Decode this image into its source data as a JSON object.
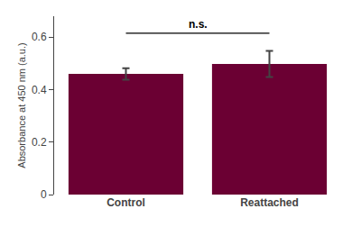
{
  "chart_data": {
    "type": "bar",
    "categories": [
      "Control",
      "Reattached"
    ],
    "values": [
      0.46,
      0.498
    ],
    "errors": [
      0.022,
      0.05
    ],
    "color": "#6B0033",
    "ylabel": "Absorbance at 450 nm (a.u.)",
    "ylim": [
      0.0,
      0.68
    ],
    "yticks": [
      0.0,
      0.2,
      0.4,
      0.6
    ],
    "grid": false,
    "annotations": [
      {
        "text": "n.s.",
        "x": [
          "Control",
          "Reattached"
        ],
        "y": 0.615
      }
    ]
  }
}
